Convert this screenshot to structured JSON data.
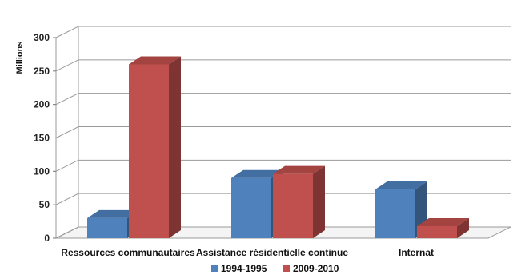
{
  "chart_data": {
    "type": "bar",
    "style": "3d-clustered-column",
    "categories": [
      "Ressources communautaires",
      "Assistance résidentielle continue",
      "Internat"
    ],
    "series": [
      {
        "name": "1994-1995",
        "values": [
          30,
          90,
          73
        ],
        "color": "#4f81bd"
      },
      {
        "name": "2009-2010",
        "values": [
          260,
          96,
          18
        ],
        "color": "#c0504d"
      }
    ],
    "ylabel": "Millions",
    "ylim": [
      0,
      300
    ],
    "yticks": [
      0,
      50,
      100,
      150,
      200,
      250,
      300
    ],
    "grid": true,
    "legend": "bottom"
  }
}
